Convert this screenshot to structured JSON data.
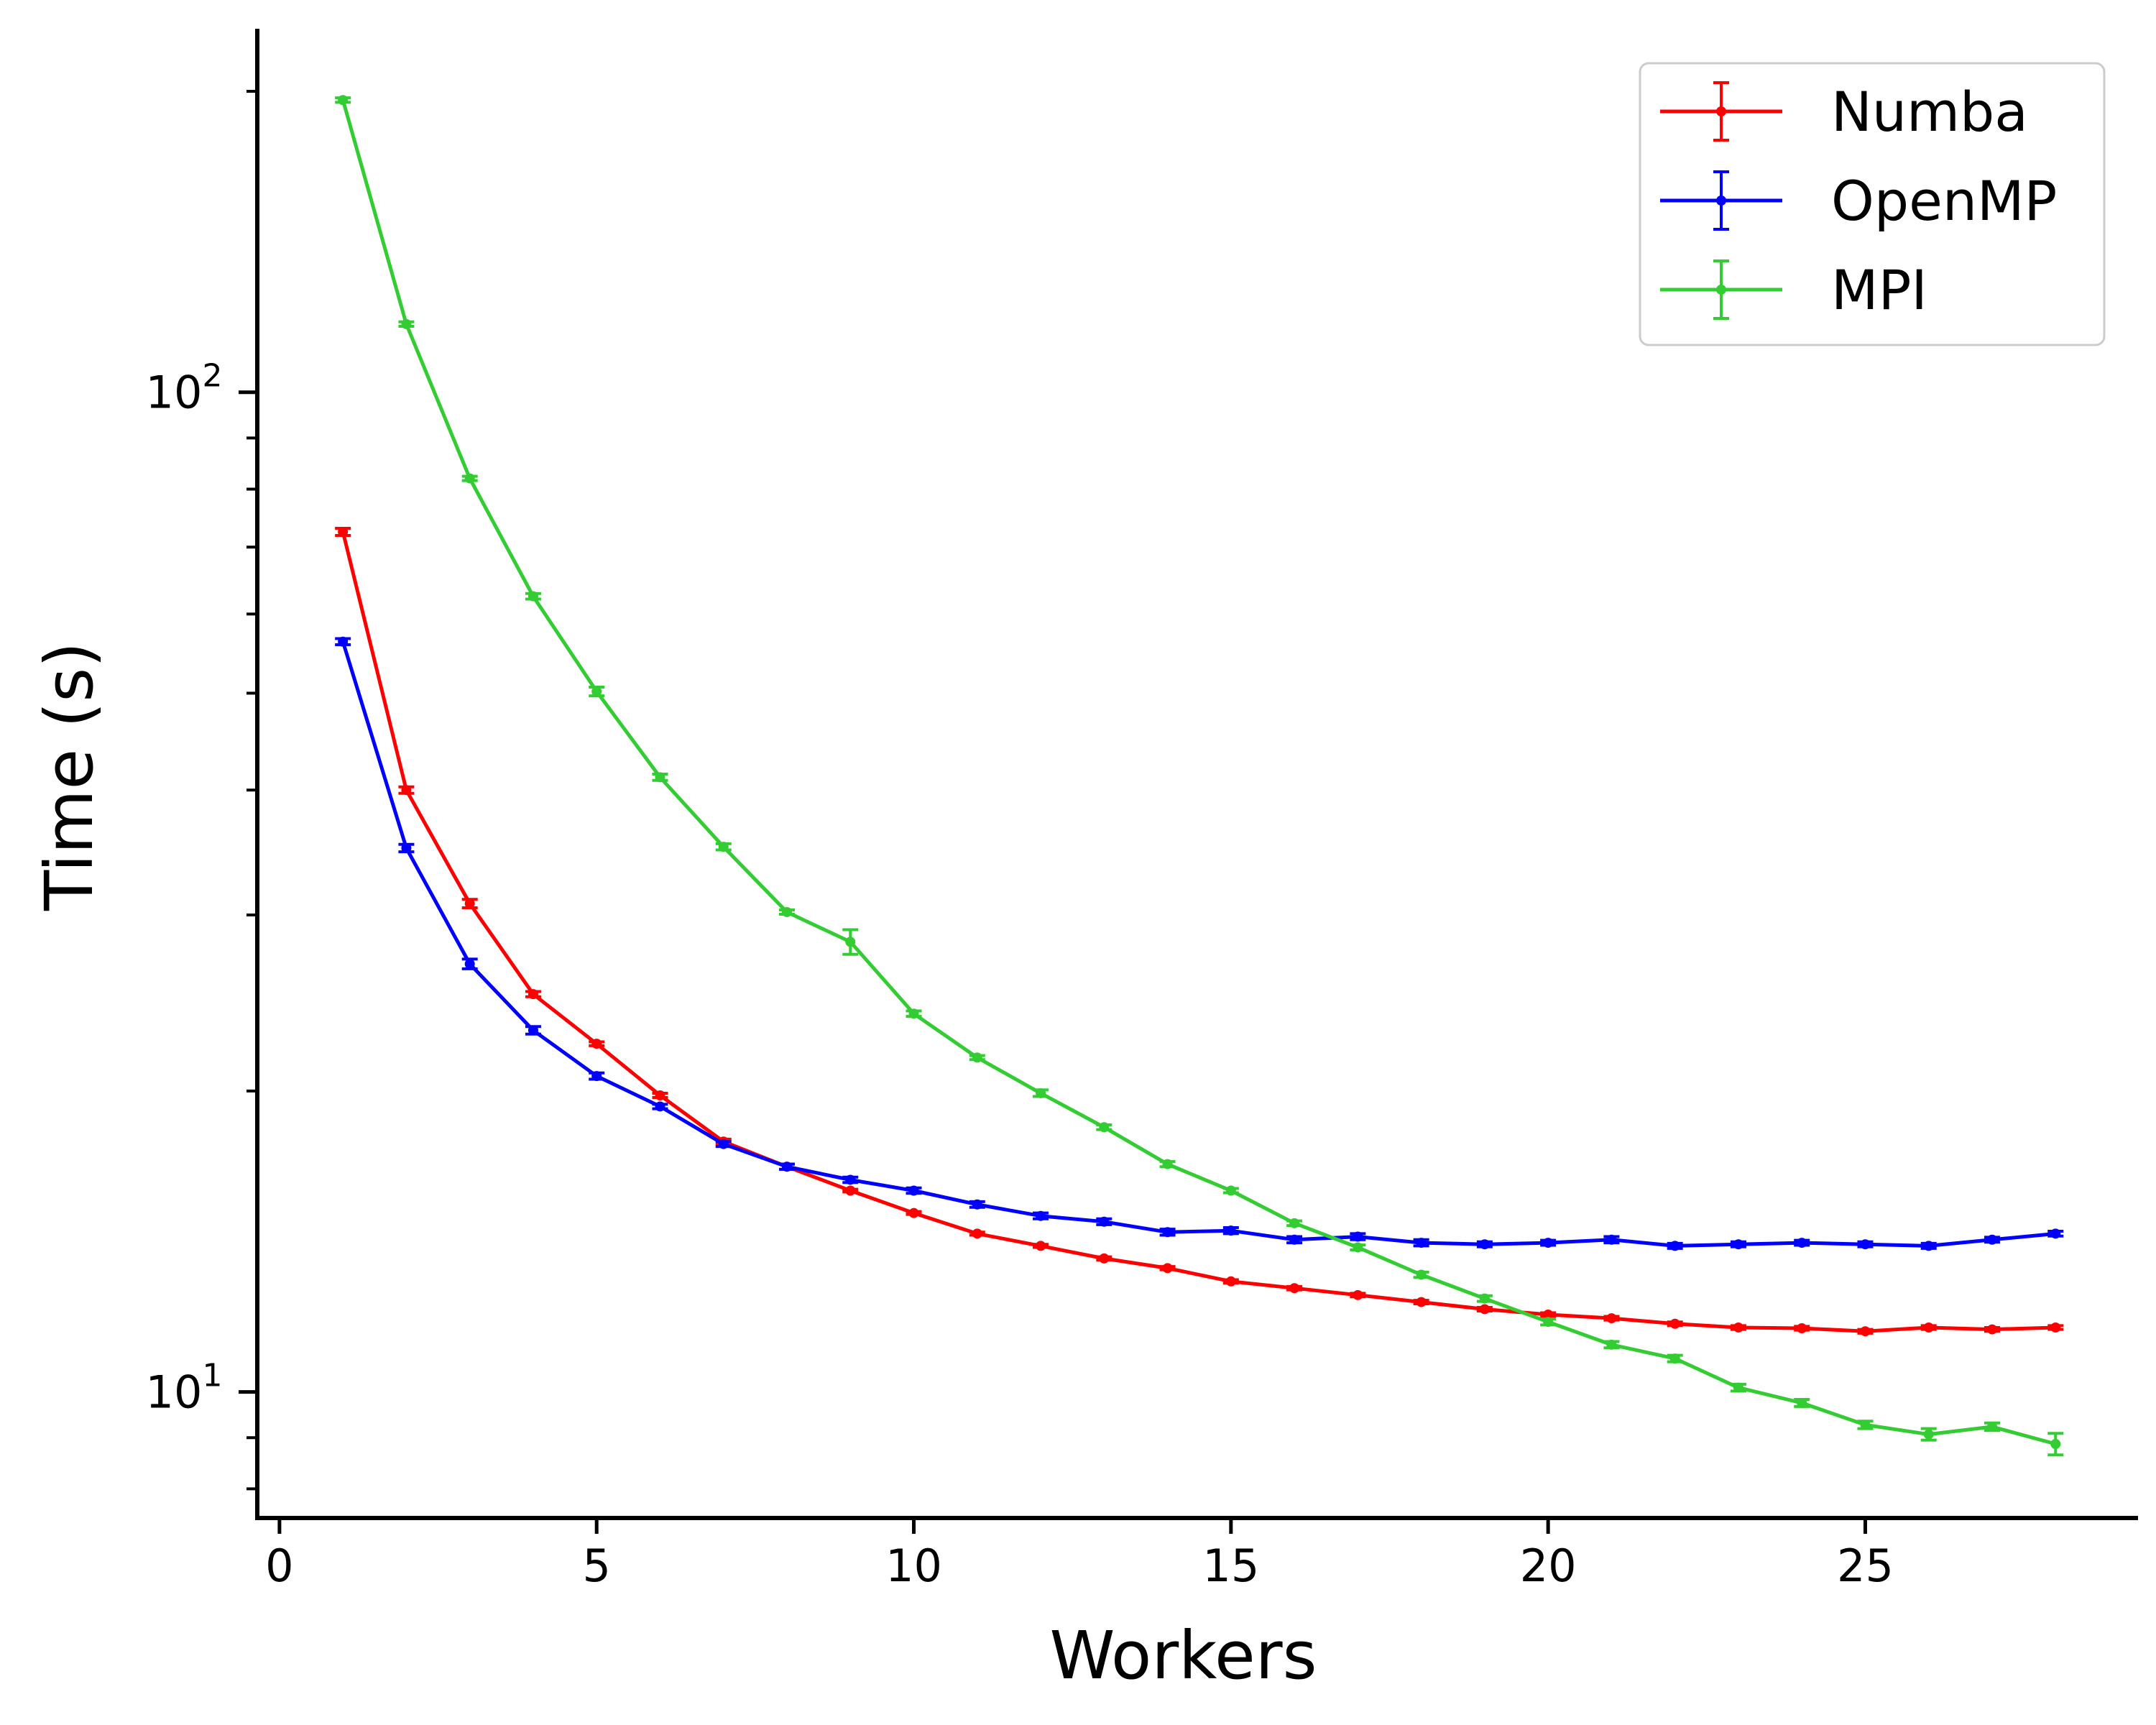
{
  "chart_data": {
    "type": "line",
    "xlabel": "Workers",
    "ylabel": "Time (s)",
    "yscale": "log",
    "xlim": [
      -0.35,
      29.3
    ],
    "ylim": [
      7.48,
      231
    ],
    "xticks": [
      0,
      5,
      10,
      15,
      20,
      25
    ],
    "yticks": [
      {
        "value": 10,
        "base": "10",
        "exp": "1"
      },
      {
        "value": 100,
        "base": "10",
        "exp": "2"
      }
    ],
    "minor_yticks": [
      8,
      9,
      20,
      30,
      40,
      50,
      60,
      70,
      80,
      90,
      200
    ],
    "legend_position": "upper right",
    "x": [
      1,
      2,
      3,
      4,
      5,
      6,
      7,
      8,
      9,
      10,
      11,
      12,
      13,
      14,
      15,
      16,
      17,
      18,
      19,
      20,
      21,
      22,
      23,
      24,
      25,
      26,
      27,
      28
    ],
    "series": [
      {
        "name": "Numba",
        "color": "#ff0000",
        "values": [
          72.5,
          40.0,
          30.8,
          25.0,
          22.3,
          19.8,
          17.8,
          16.8,
          15.9,
          15.1,
          14.4,
          14.0,
          13.6,
          13.3,
          12.9,
          12.7,
          12.5,
          12.3,
          12.1,
          11.95,
          11.85,
          11.7,
          11.6,
          11.58,
          11.5,
          11.6,
          11.55,
          11.6
        ],
        "errors": [
          0.6,
          0.3,
          0.3,
          0.15,
          0.1,
          0.1,
          0.1,
          0.1,
          0.05,
          0.05,
          0.05,
          0.05,
          0.05,
          0.05,
          0.05,
          0.05,
          0.05,
          0.05,
          0.05,
          0.05,
          0.05,
          0.05,
          0.05,
          0.05,
          0.05,
          0.05,
          0.05,
          0.05
        ]
      },
      {
        "name": "OpenMP",
        "color": "#0000ff",
        "values": [
          56.3,
          35.0,
          26.8,
          23.0,
          20.7,
          19.3,
          17.7,
          16.8,
          16.3,
          15.9,
          15.4,
          15.0,
          14.8,
          14.45,
          14.5,
          14.2,
          14.3,
          14.1,
          14.05,
          14.1,
          14.2,
          14.0,
          14.05,
          14.1,
          14.05,
          14.0,
          14.2,
          14.4
        ],
        "errors": [
          0.4,
          0.3,
          0.3,
          0.2,
          0.15,
          0.1,
          0.1,
          0.1,
          0.1,
          0.1,
          0.1,
          0.1,
          0.1,
          0.1,
          0.1,
          0.1,
          0.1,
          0.1,
          0.08,
          0.08,
          0.1,
          0.08,
          0.08,
          0.08,
          0.08,
          0.08,
          0.08,
          0.08
        ]
      },
      {
        "name": "MPI",
        "color": "#33cc33",
        "values": [
          196,
          117,
          82.0,
          62.5,
          50.2,
          41.2,
          35.1,
          30.2,
          28.2,
          23.9,
          21.6,
          19.9,
          18.4,
          16.9,
          15.9,
          14.75,
          13.95,
          13.1,
          12.4,
          11.75,
          11.15,
          10.8,
          10.1,
          9.75,
          9.27,
          9.07,
          9.23,
          8.87
        ],
        "errors": [
          1.0,
          0.6,
          0.4,
          0.4,
          0.5,
          0.3,
          0.25,
          0.15,
          0.8,
          0.15,
          0.1,
          0.15,
          0.1,
          0.1,
          0.08,
          0.08,
          0.08,
          0.08,
          0.08,
          0.08,
          0.08,
          0.08,
          0.08,
          0.08,
          0.08,
          0.12,
          0.08,
          0.22
        ]
      }
    ]
  }
}
